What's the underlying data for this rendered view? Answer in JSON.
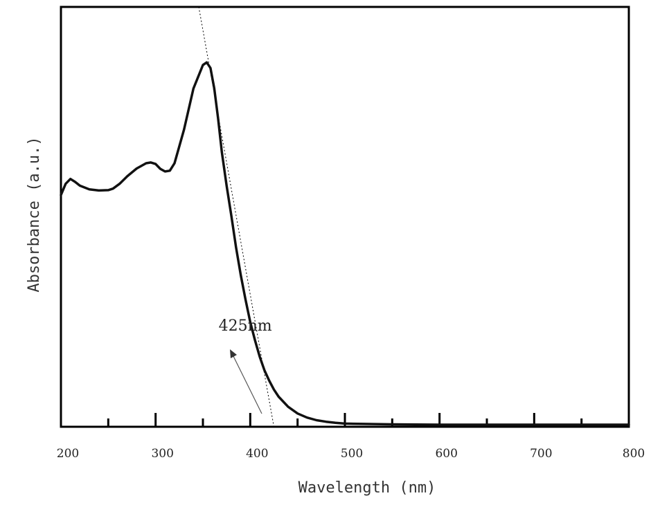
{
  "chart_data": {
    "type": "line",
    "title": "",
    "xlabel": "Wavelength (nm)",
    "ylabel": "Absorbance (a.u.)",
    "xlim": [
      200,
      800
    ],
    "ylim": [
      0,
      1.0
    ],
    "x_ticks": [
      200,
      300,
      400,
      500,
      600,
      700,
      800
    ],
    "x_tick_labels": [
      "200",
      "300",
      "400",
      "500",
      "600",
      "700",
      "800"
    ],
    "y_ticks_shown": false,
    "grid": false,
    "series": [
      {
        "color": "#111111",
        "x": [
          200,
          205,
          210,
          215,
          220,
          230,
          240,
          250,
          255,
          262,
          270,
          280,
          290,
          295,
          300,
          305,
          310,
          315,
          320,
          330,
          340,
          350,
          354,
          358,
          362,
          366,
          370,
          375,
          380,
          385,
          390,
          395,
          400,
          405,
          410,
          415,
          420,
          425,
          430,
          440,
          450,
          460,
          470,
          480,
          490,
          500,
          520,
          550,
          600,
          650,
          700,
          750,
          800
        ],
        "y": [
          0.615,
          0.645,
          0.658,
          0.65,
          0.64,
          0.63,
          0.627,
          0.628,
          0.632,
          0.645,
          0.665,
          0.686,
          0.7,
          0.702,
          0.698,
          0.685,
          0.678,
          0.68,
          0.7,
          0.79,
          0.9,
          0.963,
          0.97,
          0.955,
          0.9,
          0.82,
          0.73,
          0.64,
          0.56,
          0.475,
          0.4,
          0.335,
          0.275,
          0.226,
          0.182,
          0.146,
          0.118,
          0.094,
          0.075,
          0.048,
          0.03,
          0.019,
          0.012,
          0.008,
          0.005,
          0.003,
          0.002,
          0.001,
          0.0,
          0.0,
          0.0,
          0.0,
          0.0
        ]
      }
    ],
    "tangent_line": {
      "x": [
        350,
        425
      ],
      "y": [
        1.0,
        0.0
      ],
      "style": "dotted"
    },
    "annotations": [
      {
        "text": "425nm",
        "x": 405,
        "y": 0.24
      }
    ]
  }
}
